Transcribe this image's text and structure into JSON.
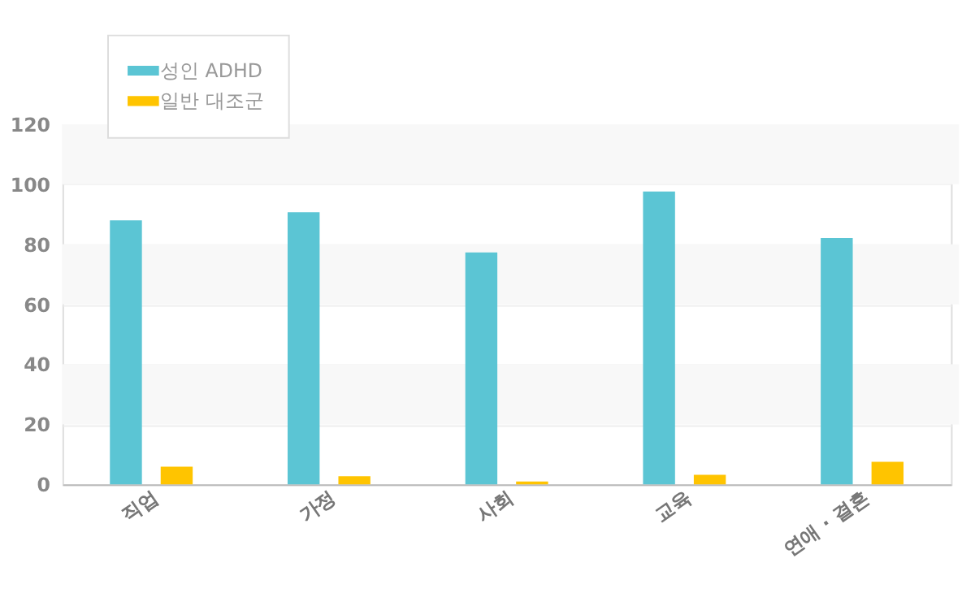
{
  "chart_data": {
    "type": "bar",
    "categories": [
      "직업",
      "가정",
      "사회",
      "교육",
      "연애 · 결혼"
    ],
    "series": [
      {
        "name": "성인 ADHD",
        "color": "#5bc5d4",
        "values": [
          88,
          90.7,
          77.3,
          97.6,
          82.1
        ]
      },
      {
        "name": "일반 대조군",
        "color": "#ffc400",
        "values": [
          5.9,
          2.7,
          1,
          3.2,
          7.5
        ]
      }
    ],
    "ylim": [
      0,
      120
    ],
    "yticks": [
      0,
      20,
      40,
      60,
      80,
      100,
      120
    ],
    "grid": "y",
    "legend": "top left"
  }
}
